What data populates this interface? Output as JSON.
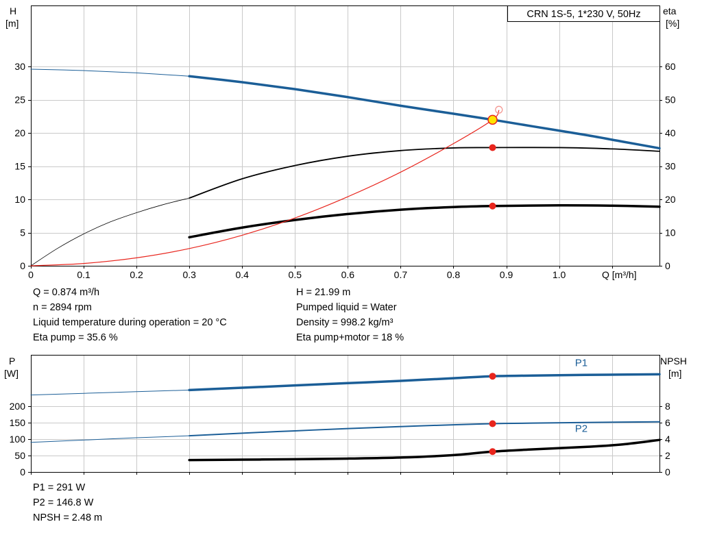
{
  "info_block": {
    "left": [
      "Q = 0.874 m³/h",
      "n = 2894 rpm",
      "Liquid temperature during operation = 20 °C",
      "Eta pump = 35.6 %"
    ],
    "right": [
      "H = 21.99 m",
      "Pumped liquid = Water",
      "Density = 998.2 kg/m³",
      "Eta pump+motor = 18 %"
    ]
  },
  "result_block": [
    "P1 = 291 W",
    "P2 = 146.8 W",
    "NPSH = 2.48 m"
  ],
  "colors": {
    "curve_blue": "#1b5e97",
    "curve_red": "#e8251d",
    "duty_yellow": "#ffe400",
    "grid": "#c9c9c9"
  },
  "chart_data": [
    {
      "id": "qh-eta-chart",
      "type": "line",
      "title": "CRN 1S-5, 1*230 V, 50Hz",
      "grid_color": "#c9c9c9",
      "axes": {
        "x": {
          "label": "Q [m³/h]",
          "min": 0,
          "max": 1.19,
          "ticks": [
            0,
            0.1,
            0.2,
            0.3,
            0.4,
            0.5,
            0.6,
            0.7,
            0.8,
            0.9,
            1.0,
            1.1
          ],
          "tick_labels": [
            "0",
            "0.1",
            "0.2",
            "0.3",
            "0.4",
            "0.5",
            "0.6",
            "0.7",
            "0.8",
            "0.9",
            "1.0"
          ]
        },
        "y_left": {
          "label_lines": [
            "H",
            "[m]"
          ],
          "min": 0,
          "max": 39.2,
          "ticks": [
            0,
            5,
            10,
            15,
            20,
            25,
            30
          ]
        },
        "y_right": {
          "label_lines": [
            "eta",
            "[%]"
          ],
          "min": 0,
          "max": 78.4,
          "ticks": [
            0,
            10,
            20,
            30,
            40,
            50,
            60
          ]
        }
      },
      "series": [
        {
          "name": "head-curve-lead",
          "color": "#1b5e97",
          "width": 1,
          "points": [
            [
              0,
              29.6
            ],
            [
              0.1,
              29.4
            ],
            [
              0.2,
              29.05
            ],
            [
              0.3,
              28.55
            ]
          ]
        },
        {
          "name": "head-curve",
          "color": "#1b5e97",
          "width": 3.5,
          "points": [
            [
              0.3,
              28.55
            ],
            [
              0.4,
              27.65
            ],
            [
              0.5,
              26.6
            ],
            [
              0.6,
              25.4
            ],
            [
              0.7,
              24.1
            ],
            [
              0.8,
              22.9
            ],
            [
              0.874,
              21.99
            ],
            [
              0.95,
              21.0
            ],
            [
              1.05,
              19.7
            ],
            [
              1.12,
              18.7
            ],
            [
              1.19,
              17.7
            ]
          ]
        },
        {
          "name": "eta-pump-curve-lead",
          "color": "#000000",
          "width": 0.8,
          "points": [
            [
              0,
              0
            ],
            [
              0.05,
              2.6
            ],
            [
              0.1,
              4.8
            ],
            [
              0.15,
              6.6
            ],
            [
              0.2,
              8.0
            ],
            [
              0.25,
              9.2
            ],
            [
              0.3,
              10.2
            ]
          ]
        },
        {
          "name": "eta-pump-curve",
          "color": "#000000",
          "width": 1.8,
          "points": [
            [
              0.3,
              10.2
            ],
            [
              0.4,
              13.1
            ],
            [
              0.5,
              15.1
            ],
            [
              0.6,
              16.5
            ],
            [
              0.7,
              17.35
            ],
            [
              0.8,
              17.75
            ],
            [
              0.874,
              17.8
            ],
            [
              1.0,
              17.8
            ],
            [
              1.1,
              17.6
            ],
            [
              1.19,
              17.25
            ]
          ]
        },
        {
          "name": "eta-pump-motor-curve",
          "color": "#000000",
          "width": 3.5,
          "points": [
            [
              0.3,
              4.3
            ],
            [
              0.4,
              5.75
            ],
            [
              0.5,
              6.9
            ],
            [
              0.6,
              7.8
            ],
            [
              0.7,
              8.45
            ],
            [
              0.8,
              8.85
            ],
            [
              0.874,
              9.0
            ],
            [
              1.0,
              9.1
            ],
            [
              1.1,
              9.05
            ],
            [
              1.19,
              8.9
            ]
          ]
        },
        {
          "name": "system-curve",
          "color": "#e8251d",
          "width": 1.2,
          "points": [
            [
              0,
              0
            ],
            [
              0.1,
              0.35
            ],
            [
              0.2,
              1.2
            ],
            [
              0.3,
              2.6
            ],
            [
              0.4,
              4.6
            ],
            [
              0.5,
              7.2
            ],
            [
              0.6,
              10.4
            ],
            [
              0.7,
              14.1
            ],
            [
              0.8,
              18.4
            ],
            [
              0.874,
              21.99
            ],
            [
              0.886,
              23.4
            ]
          ]
        }
      ],
      "markers": [
        {
          "name": "eta-pump-point",
          "x": 0.874,
          "y": 17.8,
          "r": 5,
          "fill": "#e8251d"
        },
        {
          "name": "eta-pump-motor-point",
          "x": 0.874,
          "y": 9.0,
          "r": 5,
          "fill": "#e8251d"
        },
        {
          "name": "duty-point-marker",
          "x": 0.874,
          "y": 21.99,
          "r": 6.5,
          "fill": "#ffe400",
          "stroke": "#e8251d",
          "sw": 1.5
        },
        {
          "name": "rated-point-marker",
          "x": 0.886,
          "y": 23.5,
          "r": 5,
          "fill": "none",
          "stroke": "#f49892",
          "sw": 1.3
        }
      ]
    },
    {
      "id": "power-npsh-chart",
      "type": "line",
      "title": "",
      "grid_color": "#c9c9c9",
      "axes": {
        "x": {
          "label": "",
          "min": 0,
          "max": 1.19,
          "ticks": [
            0,
            0.1,
            0.2,
            0.3,
            0.4,
            0.5,
            0.6,
            0.7,
            0.8,
            0.9,
            1.0,
            1.1
          ],
          "tick_labels": []
        },
        "y_left": {
          "label_lines": [
            "P",
            "[W]"
          ],
          "min": 0,
          "max": 356,
          "ticks": [
            0,
            50,
            100,
            150,
            200
          ]
        },
        "y_right": {
          "label_lines": [
            "NPSH",
            "[m]"
          ],
          "min": 0,
          "max": 14.25,
          "ticks": [
            0,
            2,
            4,
            6,
            8
          ]
        }
      },
      "series": [
        {
          "name": "p1-curve-lead",
          "color": "#1b5e97",
          "width": 1,
          "points": [
            [
              0,
              234
            ],
            [
              0.1,
              239
            ],
            [
              0.2,
              244
            ],
            [
              0.3,
              249
            ]
          ]
        },
        {
          "name": "p1-curve",
          "color": "#1b5e97",
          "width": 3.5,
          "points": [
            [
              0.3,
              249
            ],
            [
              0.4,
              256
            ],
            [
              0.5,
              263
            ],
            [
              0.6,
              270
            ],
            [
              0.7,
              277
            ],
            [
              0.8,
              285
            ],
            [
              0.874,
              291
            ],
            [
              0.95,
              293
            ],
            [
              1.05,
              295
            ],
            [
              1.19,
              297
            ]
          ]
        },
        {
          "name": "p2-curve-lead",
          "color": "#1b5e97",
          "width": 1,
          "points": [
            [
              0,
              90
            ],
            [
              0.1,
              97
            ],
            [
              0.2,
              104
            ],
            [
              0.3,
              110
            ]
          ]
        },
        {
          "name": "p2-curve",
          "color": "#1b5e97",
          "width": 2,
          "points": [
            [
              0.3,
              110
            ],
            [
              0.4,
              118
            ],
            [
              0.5,
              125
            ],
            [
              0.6,
              132
            ],
            [
              0.7,
              138
            ],
            [
              0.8,
              143.5
            ],
            [
              0.874,
              146.8
            ],
            [
              0.95,
              148.5
            ],
            [
              1.05,
              150.5
            ],
            [
              1.19,
              152.5
            ]
          ]
        },
        {
          "name": "npsh-curve",
          "color": "#000000",
          "width": 3.5,
          "axis": "right",
          "points": [
            [
              0.3,
              1.45
            ],
            [
              0.4,
              1.5
            ],
            [
              0.5,
              1.55
            ],
            [
              0.6,
              1.63
            ],
            [
              0.7,
              1.76
            ],
            [
              0.8,
              2.05
            ],
            [
              0.874,
              2.48
            ],
            [
              0.95,
              2.75
            ],
            [
              1.05,
              3.05
            ],
            [
              1.12,
              3.35
            ],
            [
              1.19,
              3.9
            ]
          ]
        }
      ],
      "annotations": [
        {
          "name": "p1-curve-label",
          "text": "P1",
          "x": 1.03,
          "y": 322,
          "color": "#1b5e97"
        },
        {
          "name": "p2-curve-label",
          "text": "P2",
          "x": 1.03,
          "y": 122,
          "color": "#1b5e97"
        }
      ],
      "markers": [
        {
          "name": "p1-point",
          "x": 0.874,
          "y": 291,
          "r": 5,
          "fill": "#e8251d"
        },
        {
          "name": "p2-point",
          "x": 0.874,
          "y": 146.8,
          "r": 5,
          "fill": "#e8251d"
        },
        {
          "name": "npsh-point",
          "x": 0.874,
          "y": 2.48,
          "axis": "right",
          "r": 5,
          "fill": "#e8251d"
        }
      ]
    }
  ]
}
